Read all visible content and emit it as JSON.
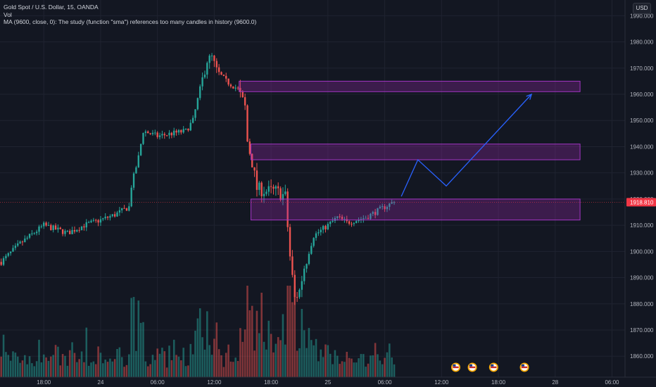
{
  "legend": {
    "symbol": "Gold Spot / U.S. Dollar, 15, OANDA",
    "vol": "Vol",
    "ma": "MA (9600, close, 0): The study (function \"sma\") references too many candles in history (9600.0)"
  },
  "currency": "USD",
  "price_label": "1918.810",
  "colors": {
    "background": "#131722",
    "up": "#26a69a",
    "down": "#ef5350",
    "zone_fill": "rgba(156,39,176,0.30)",
    "zone_border": "#a335c4",
    "projection": "#2962ff",
    "price_badge": "#f23645"
  },
  "chart_data": {
    "type": "candlestick",
    "ylim": [
      1852,
      1996
    ],
    "y_ticks": [
      1860,
      1870,
      1880,
      1890,
      1900,
      1910,
      1920,
      1930,
      1940,
      1950,
      1960,
      1970,
      1980,
      1990
    ],
    "y_tick_labels": [
      "1860.000",
      "1870.000",
      "1880.000",
      "1890.000",
      "1900.000",
      "1910.000",
      "1920.000",
      "1930.000",
      "1940.000",
      "1950.000",
      "1960.000",
      "1970.000",
      "1980.000",
      "1990.000"
    ],
    "x_ticks": [
      {
        "label": "18:00",
        "bar": 18
      },
      {
        "label": "24",
        "bar": 42
      },
      {
        "label": "06:00",
        "bar": 66
      },
      {
        "label": "12:00",
        "bar": 90
      },
      {
        "label": "18:00",
        "bar": 114
      },
      {
        "label": "25",
        "bar": 138
      },
      {
        "label": "06:00",
        "bar": 162
      },
      {
        "label": "12:00",
        "bar": 186
      },
      {
        "label": "18:00",
        "bar": 210
      },
      {
        "label": "28",
        "bar": 234
      },
      {
        "label": "06:00",
        "bar": 258
      }
    ],
    "total_bars": 264,
    "last_price": 1918.81,
    "price_path": [
      [
        0,
        1896
      ],
      [
        8,
        1903
      ],
      [
        18,
        1910
      ],
      [
        28,
        1907
      ],
      [
        35,
        1910
      ],
      [
        42,
        1912
      ],
      [
        48,
        1914
      ],
      [
        54,
        1917
      ],
      [
        55,
        1925
      ],
      [
        58,
        1936
      ],
      [
        60,
        1946
      ],
      [
        66,
        1944
      ],
      [
        72,
        1945
      ],
      [
        78,
        1946
      ],
      [
        81,
        1950
      ],
      [
        84,
        1962
      ],
      [
        87,
        1973
      ],
      [
        89,
        1974
      ],
      [
        91,
        1969
      ],
      [
        95,
        1965
      ],
      [
        100,
        1962
      ],
      [
        103,
        1955
      ],
      [
        104,
        1942
      ],
      [
        106,
        1934
      ],
      [
        108,
        1924
      ],
      [
        112,
        1923
      ],
      [
        116,
        1923
      ],
      [
        120,
        1921
      ],
      [
        122,
        1898
      ],
      [
        124,
        1882
      ],
      [
        126,
        1885
      ],
      [
        128,
        1894
      ],
      [
        132,
        1906
      ],
      [
        138,
        1910
      ],
      [
        142,
        1913
      ],
      [
        146,
        1911
      ],
      [
        150,
        1912
      ],
      [
        154,
        1913
      ],
      [
        158,
        1915
      ],
      [
        162,
        1917
      ],
      [
        166,
        1919
      ]
    ],
    "zones": [
      {
        "from_bar": 101,
        "to_bar": 245,
        "low": 1961,
        "high": 1965
      },
      {
        "from_bar": 106,
        "to_bar": 245,
        "low": 1935,
        "high": 1941
      },
      {
        "from_bar": 106,
        "to_bar": 245,
        "low": 1912,
        "high": 1920
      }
    ],
    "projection": [
      [
        169,
        1921
      ],
      [
        176,
        1935
      ],
      [
        188,
        1925
      ],
      [
        224,
        1960
      ]
    ],
    "event_markers": [
      {
        "bar": 192,
        "price": 1861
      },
      {
        "bar": 199,
        "price": 1861
      },
      {
        "bar": 208,
        "price": 1861
      },
      {
        "bar": 221,
        "price": 1861
      }
    ]
  }
}
